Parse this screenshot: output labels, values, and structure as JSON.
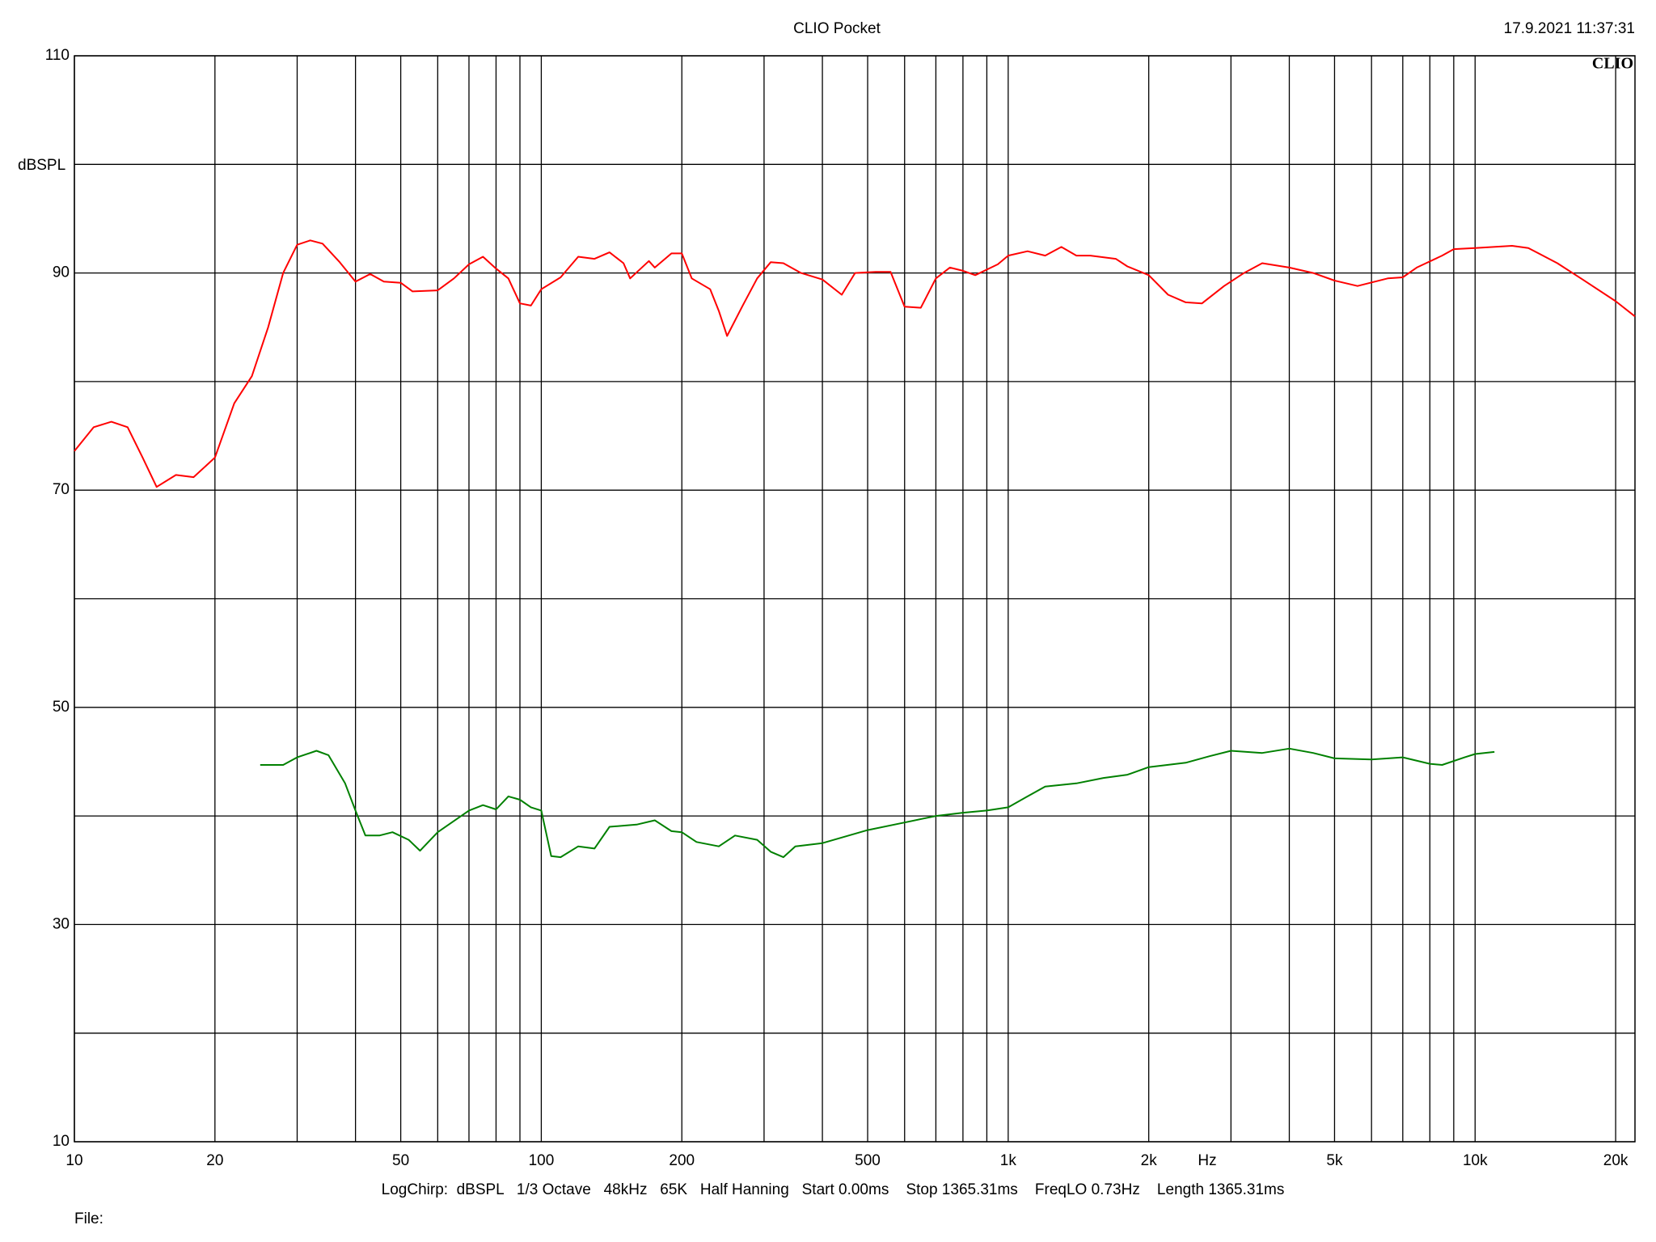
{
  "chart_data": {
    "type": "line",
    "title": "CLIO Pocket",
    "timestamp": "17.9.2021 11:37:31",
    "logo": "CLIO",
    "y_label": "dBSPL",
    "x_label": "Hz",
    "footer": "LogChirp:  dBSPL   1/3 Octave   48kHz   65K   Half Hanning   Start 0.00ms    Stop 1365.31ms    FreqLO 0.73Hz    Length 1365.31ms",
    "file_label": "File:",
    "x_log": true,
    "xlim": [
      10,
      22000
    ],
    "ylim": [
      10,
      110
    ],
    "xticks": [
      10,
      20,
      50,
      100,
      200,
      500,
      {
        "value": 1000,
        "label": "1k"
      },
      {
        "value": 2000,
        "label": "2k"
      },
      {
        "value": 5000,
        "label": "5k"
      },
      {
        "value": 10000,
        "label": "10k"
      },
      {
        "value": 20000,
        "label": "20k"
      }
    ],
    "xgrid": [
      30,
      40,
      60,
      70,
      80,
      90,
      300,
      400,
      600,
      700,
      800,
      900,
      3000,
      4000,
      6000,
      7000,
      8000,
      9000
    ],
    "yticks": [
      10,
      30,
      50,
      70,
      90,
      110
    ],
    "ygrid": [
      20,
      40,
      60,
      80,
      100
    ],
    "series": [
      {
        "color": "#ff0000",
        "x": [
          10,
          11,
          12,
          13,
          14,
          15,
          16.5,
          18,
          20,
          22,
          24,
          26,
          28,
          30,
          32,
          34,
          37,
          40,
          43,
          46,
          50,
          53,
          60,
          65,
          70,
          75,
          80,
          85,
          90,
          95,
          100,
          110,
          120,
          130,
          140,
          150,
          155,
          170,
          175,
          190,
          200,
          210,
          230,
          240,
          250,
          270,
          290,
          310,
          330,
          360,
          400,
          440,
          470,
          520,
          560,
          600,
          650,
          700,
          750,
          800,
          850,
          950,
          1000,
          1100,
          1200,
          1300,
          1400,
          1500,
          1700,
          1800,
          2000,
          2200,
          2400,
          2600,
          2900,
          3200,
          3500,
          4000,
          4500,
          5000,
          5600,
          6500,
          7000,
          7500,
          8500,
          9000,
          10000,
          12000,
          13000,
          15000,
          17000,
          20000,
          22000
        ],
        "values": [
          73.6,
          75.8,
          76.3,
          75.8,
          73,
          70.3,
          71.4,
          71.2,
          73,
          78,
          80.5,
          85,
          90,
          92.6,
          93.0,
          92.7,
          91,
          89.2,
          89.9,
          89.2,
          89.1,
          88.3,
          88.4,
          89.5,
          90.8,
          91.5,
          90.4,
          89.5,
          87.2,
          87.0,
          88.5,
          89.6,
          91.5,
          91.3,
          91.9,
          90.9,
          89.5,
          91.1,
          90.5,
          91.8,
          91.8,
          89.5,
          88.5,
          86.5,
          84.2,
          87,
          89.5,
          91.0,
          90.9,
          90.0,
          89.4,
          88.0,
          90.0,
          90.1,
          90.1,
          86.9,
          86.8,
          89.5,
          90.5,
          90.2,
          89.8,
          90.8,
          91.6,
          92.0,
          91.6,
          92.4,
          91.6,
          91.6,
          91.3,
          90.6,
          89.8,
          88.0,
          87.3,
          87.2,
          88.8,
          90.0,
          90.9,
          90.5,
          90.0,
          89.3,
          88.8,
          89.5,
          89.6,
          90.5,
          91.6,
          92.2,
          92.3,
          92.5,
          92.3,
          90.9,
          89.4,
          87.4,
          86.0
        ]
      },
      {
        "color": "#008000",
        "x": [
          25,
          28,
          30,
          33,
          35,
          38,
          40,
          42,
          45,
          48,
          52,
          55,
          60,
          70,
          75,
          80,
          85,
          90,
          95,
          100,
          105,
          110,
          120,
          130,
          140,
          160,
          175,
          190,
          200,
          215,
          240,
          260,
          290,
          310,
          330,
          350,
          400,
          500,
          600,
          700,
          800,
          900,
          1000,
          1100,
          1200,
          1400,
          1600,
          1800,
          2000,
          2400,
          2700,
          3000,
          3500,
          4000,
          4500,
          5000,
          6000,
          7000,
          8000,
          8500,
          9500,
          10000,
          11000
        ],
        "values": [
          44.7,
          44.7,
          45.4,
          46.0,
          45.6,
          43.0,
          40.5,
          38.2,
          38.2,
          38.5,
          37.8,
          36.8,
          38.5,
          40.5,
          41.0,
          40.6,
          41.8,
          41.5,
          40.8,
          40.5,
          36.3,
          36.2,
          37.2,
          37.0,
          39.0,
          39.2,
          39.6,
          38.6,
          38.5,
          37.6,
          37.2,
          38.2,
          37.8,
          36.7,
          36.2,
          37.2,
          37.5,
          38.7,
          39.4,
          40.0,
          40.3,
          40.5,
          40.8,
          41.8,
          42.7,
          43.0,
          43.5,
          43.8,
          44.5,
          44.9,
          45.5,
          46.0,
          45.8,
          46.2,
          45.8,
          45.3,
          45.2,
          45.4,
          44.8,
          44.7,
          45.4,
          45.7,
          45.9
        ]
      }
    ]
  }
}
